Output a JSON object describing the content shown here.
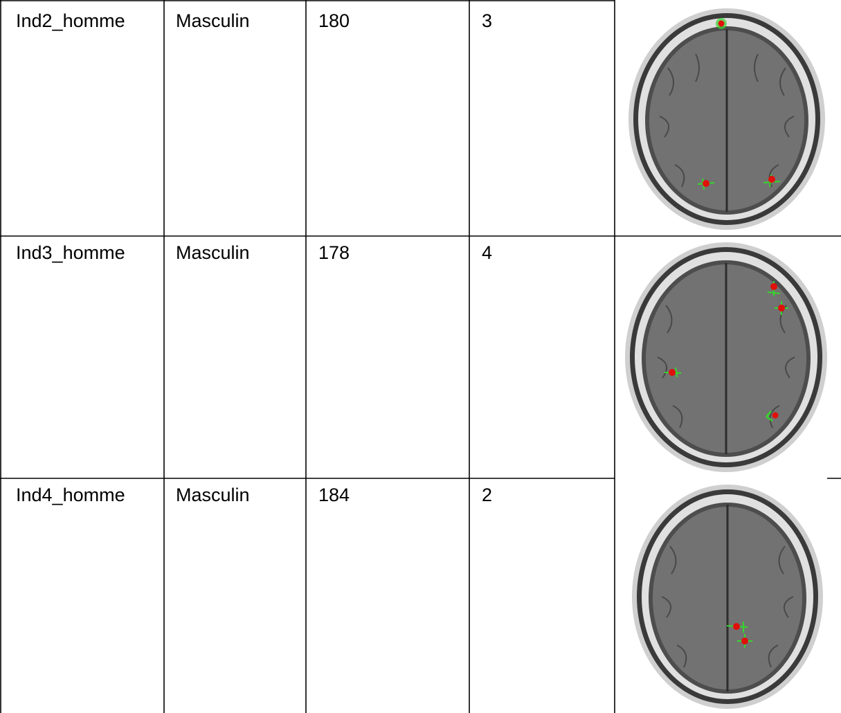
{
  "table": {
    "rows": [
      {
        "id": "Ind2_homme",
        "sex": "Masculin",
        "height": "180",
        "count": "3",
        "scan": {
          "marker_count": 3
        }
      },
      {
        "id": "Ind3_homme",
        "sex": "Masculin",
        "height": "178",
        "count": "4",
        "scan": {
          "marker_count": 4
        }
      },
      {
        "id": "Ind4_homme",
        "sex": "Masculin",
        "height": "184",
        "count": "2",
        "scan": {
          "marker_count": 2
        }
      }
    ]
  },
  "colors": {
    "grid_line": "#000000",
    "skull_bone": "#d6d6d6",
    "brain_tissue": "#6f6f6f",
    "marker_core": "#e0100a",
    "marker_halo": "#37d62c"
  }
}
